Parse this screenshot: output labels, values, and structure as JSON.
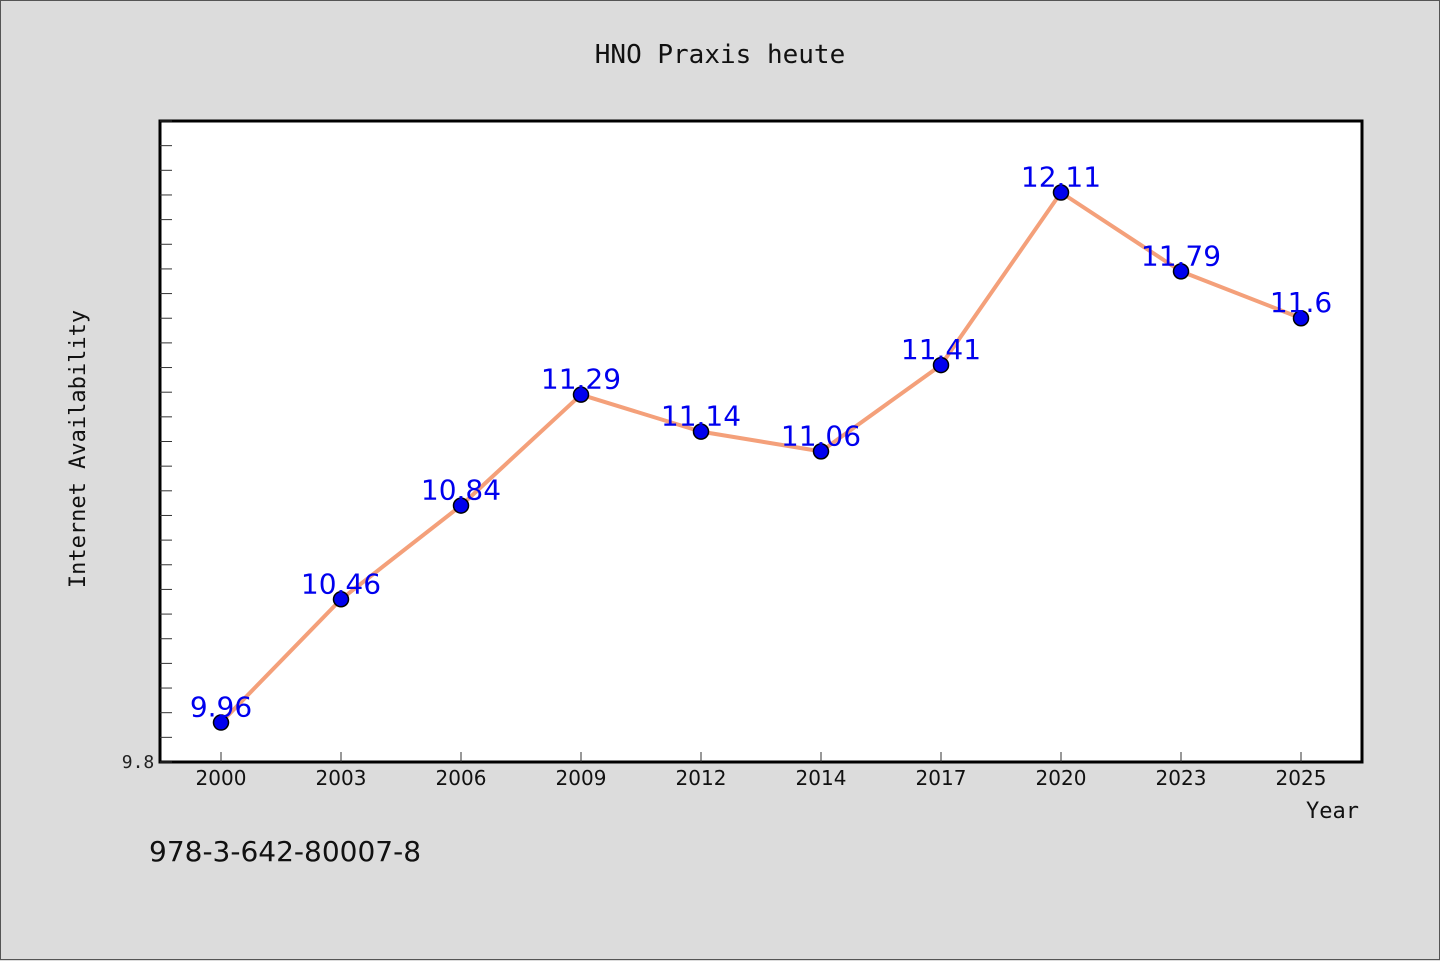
{
  "chart_data": {
    "type": "line",
    "title": "HNO Praxis heute",
    "xlabel": "Year",
    "ylabel": "Internet Availability",
    "categories": [
      "2000",
      "2003",
      "2006",
      "2009",
      "2012",
      "2014",
      "2017",
      "2020",
      "2023",
      "2025"
    ],
    "series": [
      {
        "values": [
          9.96,
          10.46,
          10.84,
          11.29,
          11.14,
          11.06,
          11.41,
          12.11,
          11.79,
          11.6
        ]
      }
    ],
    "data_labels": [
      "9.96",
      "10.46",
      "10.84",
      "11.29",
      "11.14",
      "11.06",
      "11.41",
      "12.11",
      "11.79",
      "11.6"
    ],
    "ytick_label": "9.8",
    "ylim": [
      9.8,
      12.4
    ],
    "yminor_step": 0.1,
    "grid": false,
    "legend": "none",
    "colors": {
      "line": "#f4a07a",
      "marker": "#0000ee",
      "data_label": "#0000ee",
      "plot_bg": "#ffffff",
      "page_bg": "#dcdcdc"
    }
  },
  "footer": {
    "isbn": "978-3-642-80007-8"
  }
}
